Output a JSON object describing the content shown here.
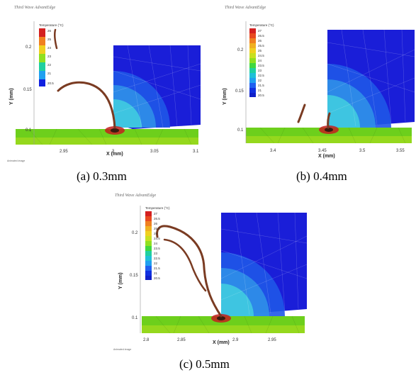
{
  "software_title": "Third Wave AdvantEdge",
  "legend_title": "Temperature (°C)",
  "legend_values_a": [
    "26",
    "25",
    "24",
    "23",
    "22",
    "21",
    "20.5"
  ],
  "legend_values_b": [
    "27",
    "26.5",
    "26",
    "25.5",
    "25",
    "24.5",
    "24",
    "23.5",
    "23",
    "22.5",
    "22",
    "21.5",
    "21",
    "20.5"
  ],
  "legend_values_c": [
    "27",
    "26.5",
    "26",
    "25.5",
    "25",
    "24.5",
    "24",
    "23.5",
    "23",
    "22.5",
    "22",
    "21.5",
    "21",
    "20.5"
  ],
  "axis_x_label": "X (mm)",
  "axis_y_label": "Y (mm)",
  "note": "Animated image",
  "panel_a": {
    "caption": "(a) 0.3mm",
    "y_ticks": [
      "0.2",
      "0.15",
      "0.1"
    ],
    "x_ticks": [
      "2.95",
      "3",
      "3.05",
      "3.1"
    ]
  },
  "panel_b": {
    "caption": "(b) 0.4mm",
    "y_ticks": [
      "0.2",
      "0.15",
      "0.1"
    ],
    "x_ticks": [
      "3.4",
      "3.45",
      "3.5",
      "3.55"
    ]
  },
  "panel_c": {
    "caption": "(c) 0.5mm",
    "y_ticks": [
      "0.2",
      "0.15",
      "0.1"
    ],
    "x_ticks": [
      "2.8",
      "2.85",
      "2.9",
      "2.95"
    ]
  },
  "colors": {
    "workpiece_top": "#6dcf1c",
    "tool_blue": "#1a1ed8",
    "chip": "#7a3b22",
    "hot": "#c41e1e"
  }
}
